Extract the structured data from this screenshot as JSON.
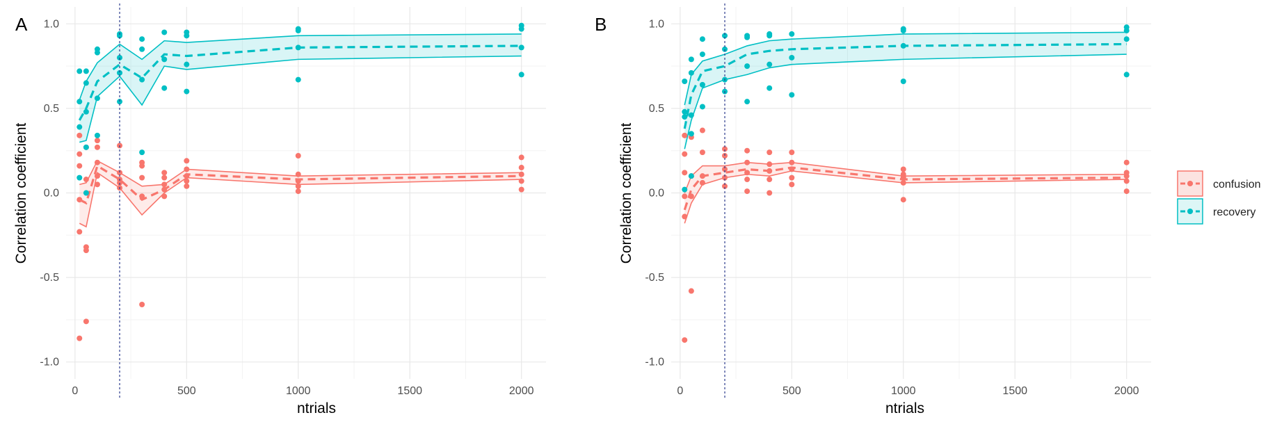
{
  "chart_data": [
    {
      "panel": "A",
      "type": "line",
      "xlabel": "ntrials",
      "ylabel": "Correlation coefficient",
      "xlim": [
        -40,
        2110
      ],
      "ylim": [
        -1.1,
        1.1
      ],
      "xticks": [
        0,
        500,
        1000,
        1500,
        2000
      ],
      "yticks": [
        -1.0,
        -0.5,
        0.0,
        0.5,
        1.0
      ],
      "ytick_labels": [
        "-1.0",
        "-0.5",
        "0.0",
        "0.5",
        "1.0"
      ],
      "grid": true,
      "reference_line_x": 200,
      "series": [
        {
          "name": "confusion",
          "color": "#F8766D",
          "x": [
            20,
            50,
            100,
            200,
            300,
            400,
            500,
            1000,
            2000
          ],
          "mean": [
            -0.04,
            -0.06,
            0.16,
            0.08,
            -0.04,
            0.02,
            0.11,
            0.08,
            0.1
          ],
          "upper": [
            0.05,
            0.06,
            0.19,
            0.12,
            0.04,
            0.05,
            0.14,
            0.1,
            0.12
          ],
          "lower": [
            -0.18,
            -0.2,
            0.12,
            0.03,
            -0.13,
            0.0,
            0.09,
            0.05,
            0.08
          ],
          "points": [
            [
              20,
              0.34
            ],
            [
              20,
              0.23
            ],
            [
              20,
              0.16
            ],
            [
              20,
              -0.04
            ],
            [
              20,
              -0.23
            ],
            [
              20,
              -0.86
            ],
            [
              50,
              0.27
            ],
            [
              50,
              0.08
            ],
            [
              50,
              -0.32
            ],
            [
              50,
              -0.34
            ],
            [
              50,
              -0.76
            ],
            [
              100,
              0.31
            ],
            [
              100,
              0.27
            ],
            [
              100,
              0.18
            ],
            [
              100,
              0.1
            ],
            [
              100,
              0.05
            ],
            [
              200,
              0.28
            ],
            [
              200,
              0.12
            ],
            [
              200,
              0.08
            ],
            [
              200,
              0.06
            ],
            [
              200,
              0.03
            ],
            [
              300,
              0.18
            ],
            [
              300,
              0.16
            ],
            [
              300,
              0.09
            ],
            [
              300,
              -0.02
            ],
            [
              300,
              -0.66
            ],
            [
              400,
              0.12
            ],
            [
              400,
              0.09
            ],
            [
              400,
              0.05
            ],
            [
              400,
              0.02
            ],
            [
              400,
              -0.02
            ],
            [
              500,
              0.19
            ],
            [
              500,
              0.14
            ],
            [
              500,
              0.1
            ],
            [
              500,
              0.07
            ],
            [
              500,
              0.04
            ],
            [
              1000,
              0.22
            ],
            [
              1000,
              0.11
            ],
            [
              1000,
              0.07
            ],
            [
              1000,
              0.04
            ],
            [
              1000,
              0.01
            ],
            [
              2000,
              0.21
            ],
            [
              2000,
              0.15
            ],
            [
              2000,
              0.11
            ],
            [
              2000,
              0.07
            ],
            [
              2000,
              0.02
            ]
          ]
        },
        {
          "name": "recovery",
          "color": "#00BFC4",
          "x": [
            20,
            50,
            100,
            200,
            300,
            400,
            500,
            1000,
            2000
          ],
          "mean": [
            0.43,
            0.5,
            0.66,
            0.76,
            0.68,
            0.82,
            0.81,
            0.86,
            0.87
          ],
          "upper": [
            0.55,
            0.66,
            0.77,
            0.88,
            0.79,
            0.9,
            0.89,
            0.93,
            0.94
          ],
          "lower": [
            0.3,
            0.31,
            0.57,
            0.69,
            0.52,
            0.75,
            0.73,
            0.79,
            0.81
          ],
          "points": [
            [
              20,
              0.72
            ],
            [
              20,
              0.54
            ],
            [
              20,
              0.39
            ],
            [
              20,
              0.09
            ],
            [
              50,
              0.72
            ],
            [
              50,
              0.65
            ],
            [
              50,
              0.48
            ],
            [
              50,
              0.27
            ],
            [
              50,
              0.0
            ],
            [
              100,
              0.85
            ],
            [
              100,
              0.83
            ],
            [
              100,
              0.56
            ],
            [
              100,
              0.34
            ],
            [
              200,
              0.93
            ],
            [
              200,
              0.94
            ],
            [
              200,
              0.8
            ],
            [
              200,
              0.71
            ],
            [
              200,
              0.54
            ],
            [
              300,
              0.91
            ],
            [
              300,
              0.85
            ],
            [
              300,
              0.67
            ],
            [
              300,
              0.24
            ],
            [
              400,
              0.95
            ],
            [
              400,
              0.79
            ],
            [
              400,
              0.62
            ],
            [
              500,
              0.95
            ],
            [
              500,
              0.93
            ],
            [
              500,
              0.76
            ],
            [
              500,
              0.6
            ],
            [
              1000,
              0.97
            ],
            [
              1000,
              0.96
            ],
            [
              1000,
              0.86
            ],
            [
              1000,
              0.67
            ],
            [
              2000,
              0.99
            ],
            [
              2000,
              0.97
            ],
            [
              2000,
              0.86
            ],
            [
              2000,
              0.7
            ]
          ]
        }
      ]
    },
    {
      "panel": "B",
      "type": "line",
      "xlabel": "ntrials",
      "ylabel": "Correlation coefficient",
      "xlim": [
        -40,
        2110
      ],
      "ylim": [
        -1.1,
        1.1
      ],
      "xticks": [
        0,
        500,
        1000,
        1500,
        2000
      ],
      "yticks": [
        -1.0,
        -0.5,
        0.0,
        0.5,
        1.0
      ],
      "ytick_labels": [
        "-1.0",
        "-0.5",
        "0.0",
        "0.5",
        "1.0"
      ],
      "grid": true,
      "reference_line_x": 200,
      "series": [
        {
          "name": "confusion",
          "color": "#F8766D",
          "x": [
            20,
            50,
            100,
            200,
            300,
            400,
            500,
            1000,
            2000
          ],
          "mean": [
            -0.1,
            0.02,
            0.1,
            0.12,
            0.14,
            0.13,
            0.15,
            0.08,
            0.09
          ],
          "upper": [
            0.0,
            0.1,
            0.16,
            0.16,
            0.18,
            0.17,
            0.18,
            0.1,
            0.11
          ],
          "lower": [
            -0.18,
            -0.06,
            0.05,
            0.09,
            0.11,
            0.1,
            0.13,
            0.06,
            0.08
          ],
          "points": [
            [
              20,
              0.34
            ],
            [
              20,
              0.23
            ],
            [
              20,
              0.12
            ],
            [
              20,
              -0.02
            ],
            [
              20,
              -0.14
            ],
            [
              20,
              -0.87
            ],
            [
              50,
              0.33
            ],
            [
              50,
              0.1
            ],
            [
              50,
              -0.02
            ],
            [
              50,
              -0.58
            ],
            [
              100,
              0.37
            ],
            [
              100,
              0.24
            ],
            [
              100,
              0.1
            ],
            [
              100,
              0.06
            ],
            [
              200,
              0.26
            ],
            [
              200,
              0.22
            ],
            [
              200,
              0.14
            ],
            [
              200,
              0.09
            ],
            [
              200,
              0.04
            ],
            [
              300,
              0.25
            ],
            [
              300,
              0.18
            ],
            [
              300,
              0.12
            ],
            [
              300,
              0.08
            ],
            [
              300,
              0.01
            ],
            [
              400,
              0.24
            ],
            [
              400,
              0.17
            ],
            [
              400,
              0.13
            ],
            [
              400,
              0.08
            ],
            [
              400,
              0.0
            ],
            [
              500,
              0.24
            ],
            [
              500,
              0.18
            ],
            [
              500,
              0.14
            ],
            [
              500,
              0.09
            ],
            [
              500,
              0.05
            ],
            [
              1000,
              0.14
            ],
            [
              1000,
              0.11
            ],
            [
              1000,
              0.09
            ],
            [
              1000,
              0.06
            ],
            [
              1000,
              -0.04
            ],
            [
              2000,
              0.18
            ],
            [
              2000,
              0.12
            ],
            [
              2000,
              0.1
            ],
            [
              2000,
              0.07
            ],
            [
              2000,
              0.01
            ]
          ]
        },
        {
          "name": "recovery",
          "color": "#00BFC4",
          "x": [
            20,
            50,
            100,
            200,
            300,
            400,
            500,
            1000,
            2000
          ],
          "mean": [
            0.38,
            0.58,
            0.72,
            0.75,
            0.82,
            0.84,
            0.85,
            0.87,
            0.88
          ],
          "upper": [
            0.52,
            0.7,
            0.78,
            0.82,
            0.87,
            0.9,
            0.91,
            0.94,
            0.95
          ],
          "lower": [
            0.26,
            0.43,
            0.62,
            0.67,
            0.7,
            0.74,
            0.76,
            0.79,
            0.82
          ],
          "points": [
            [
              20,
              0.66
            ],
            [
              20,
              0.48
            ],
            [
              20,
              0.45
            ],
            [
              20,
              0.02
            ],
            [
              50,
              0.79
            ],
            [
              50,
              0.71
            ],
            [
              50,
              0.46
            ],
            [
              50,
              0.35
            ],
            [
              50,
              0.1
            ],
            [
              100,
              0.91
            ],
            [
              100,
              0.82
            ],
            [
              100,
              0.64
            ],
            [
              100,
              0.51
            ],
            [
              200,
              0.93
            ],
            [
              200,
              0.85
            ],
            [
              200,
              0.67
            ],
            [
              200,
              0.6
            ],
            [
              300,
              0.93
            ],
            [
              300,
              0.92
            ],
            [
              300,
              0.75
            ],
            [
              300,
              0.54
            ],
            [
              400,
              0.94
            ],
            [
              400,
              0.93
            ],
            [
              400,
              0.76
            ],
            [
              400,
              0.62
            ],
            [
              500,
              0.94
            ],
            [
              500,
              0.8
            ],
            [
              500,
              0.58
            ],
            [
              1000,
              0.97
            ],
            [
              1000,
              0.96
            ],
            [
              1000,
              0.87
            ],
            [
              1000,
              0.66
            ],
            [
              2000,
              0.98
            ],
            [
              2000,
              0.96
            ],
            [
              2000,
              0.91
            ],
            [
              2000,
              0.7
            ]
          ]
        }
      ]
    }
  ],
  "legend": {
    "items": [
      {
        "label": "confusion",
        "color": "#F8766D"
      },
      {
        "label": "recovery",
        "color": "#00BFC4"
      }
    ],
    "placement": "right"
  }
}
